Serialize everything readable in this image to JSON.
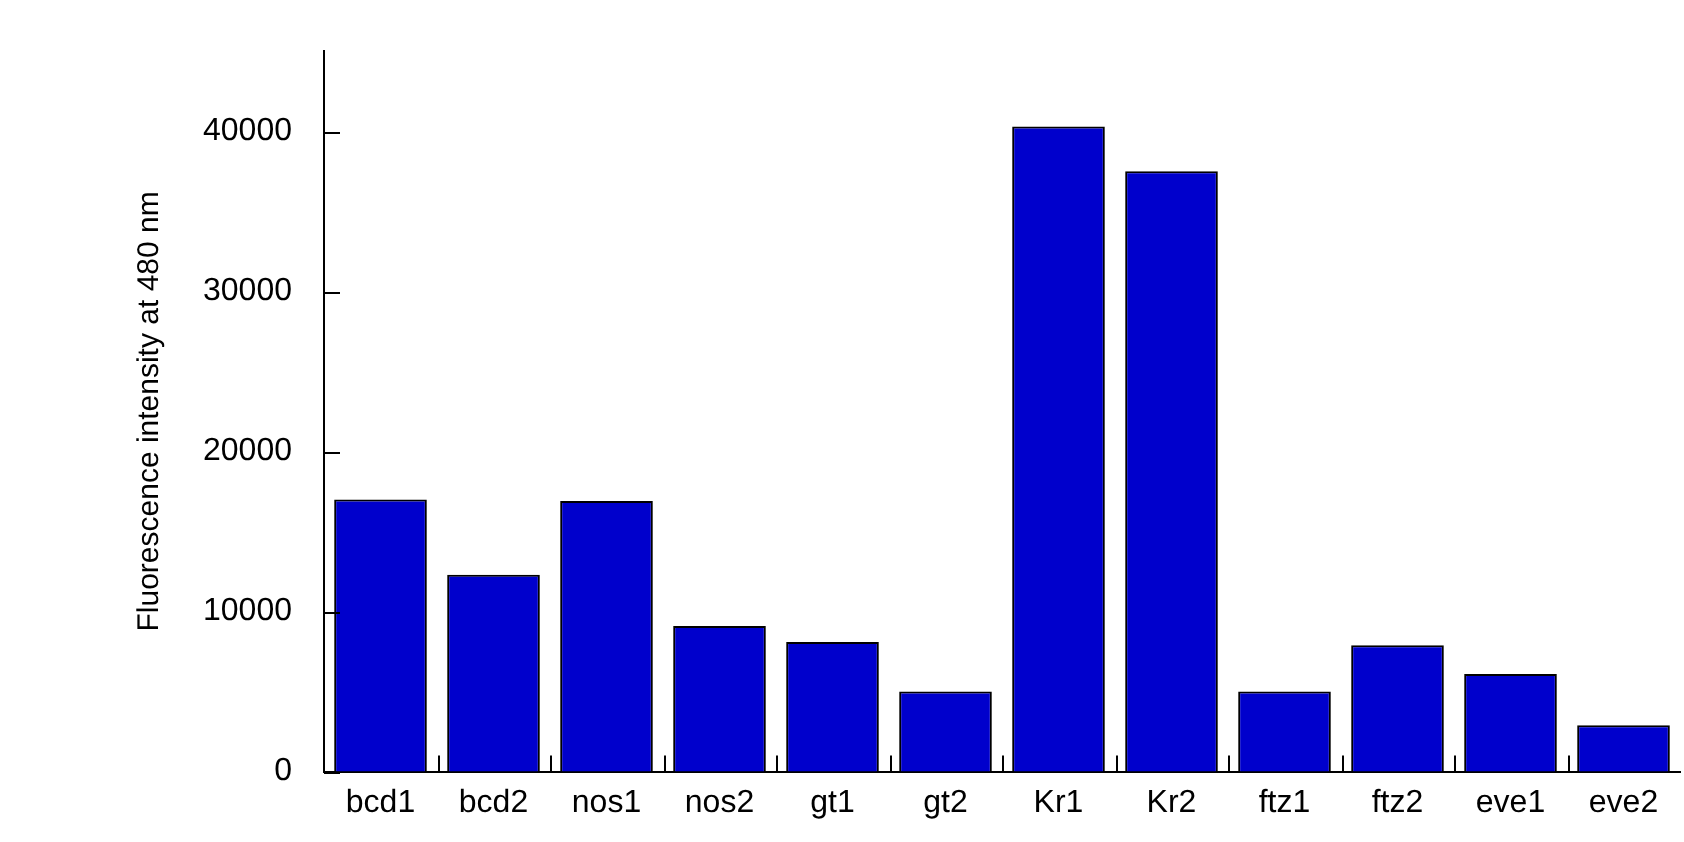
{
  "chart_data": {
    "type": "bar",
    "ylabel": "Fluorescence intensity at 480 nm",
    "categories": [
      "bcd1",
      "bcd2",
      "nos1",
      "nos2",
      "gt1",
      "gt2",
      "Kr1",
      "Kr2",
      "ftz1",
      "ftz2",
      "eve1",
      "eve2"
    ],
    "values": [
      17000,
      12300,
      16900,
      9100,
      8100,
      5000,
      40300,
      37500,
      5000,
      7900,
      6100,
      2900
    ],
    "color": "#0000cc",
    "ylim": [
      0,
      45000
    ],
    "yticks": [
      0,
      10000,
      20000,
      30000,
      40000
    ],
    "grid": false,
    "legend": false
  }
}
